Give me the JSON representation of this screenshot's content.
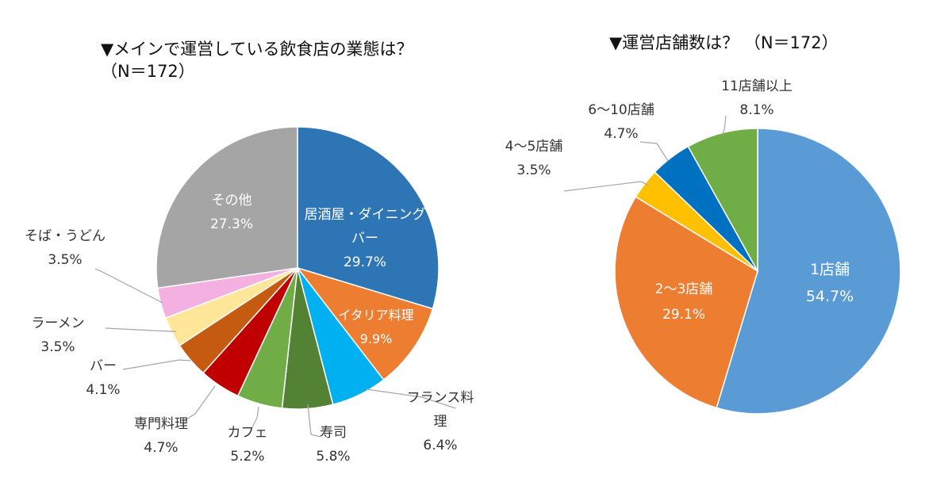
{
  "titles": {
    "left_line1": "▼メインで運営している飲食店の業態は？",
    "left_line2": "（N＝172）",
    "right": "▼運営店舗数は？ （N＝172）"
  },
  "chart_data": [
    {
      "type": "pie",
      "title": "▼メインで運営している飲食店の業態は？（N＝172）",
      "slices": [
        {
          "label": "居酒屋・ダイニングバー",
          "label_lines": [
            "居酒屋・ダイニング",
            "バー"
          ],
          "value": 29.7,
          "value_label": "29.7%",
          "color": "#2e75b6"
        },
        {
          "label": "イタリア料理",
          "label_lines": [
            "イタリア料理"
          ],
          "value": 9.9,
          "value_label": "9.9%",
          "color": "#ed7d31"
        },
        {
          "label": "フランス料理",
          "label_lines": [
            "フランス料",
            "理"
          ],
          "value": 6.4,
          "value_label": "6.4%",
          "color": "#00b0f0"
        },
        {
          "label": "寿司",
          "label_lines": [
            "寿司"
          ],
          "value": 5.8,
          "value_label": "5.8%",
          "color": "#548235"
        },
        {
          "label": "カフェ",
          "label_lines": [
            "カフェ"
          ],
          "value": 5.2,
          "value_label": "5.2%",
          "color": "#70ad47"
        },
        {
          "label": "専門料理",
          "label_lines": [
            "専門料理"
          ],
          "value": 4.7,
          "value_label": "4.7%",
          "color": "#c00000"
        },
        {
          "label": "バー",
          "label_lines": [
            "バー"
          ],
          "value": 4.1,
          "value_label": "4.1%",
          "color": "#c55a11"
        },
        {
          "label": "ラーメン",
          "label_lines": [
            "ラーメン"
          ],
          "value": 3.5,
          "value_label": "3.5%",
          "color": "#ffe699"
        },
        {
          "label": "そば・うどん",
          "label_lines": [
            "そば・うどん"
          ],
          "value": 3.5,
          "value_label": "3.5%",
          "color": "#f4b0e0"
        },
        {
          "label": "その他",
          "label_lines": [
            "その他"
          ],
          "value": 27.3,
          "value_label": "27.3%",
          "color": "#a5a5a5"
        }
      ]
    },
    {
      "type": "pie",
      "title": "▼運営店舗数は？ （N＝172）",
      "slices": [
        {
          "label": "1店舗",
          "label_lines": [
            "1店舗"
          ],
          "value": 54.7,
          "value_label": "54.7%",
          "color": "#5b9bd5"
        },
        {
          "label": "2～3店舗",
          "label_lines": [
            "2～3店舗"
          ],
          "value": 29.1,
          "value_label": "29.1%",
          "color": "#ed7d31"
        },
        {
          "label": "4～5店舗",
          "label_lines": [
            "4～5店舗"
          ],
          "value": 3.5,
          "value_label": "3.5%",
          "color": "#ffc000"
        },
        {
          "label": "6～10店舗",
          "label_lines": [
            "6～10店舗"
          ],
          "value": 4.7,
          "value_label": "4.7%",
          "color": "#0070c0"
        },
        {
          "label": "11店舗以上",
          "label_lines": [
            "11店舗以上"
          ],
          "value": 8.1,
          "value_label": "8.1%",
          "color": "#70ad47"
        }
      ]
    }
  ]
}
